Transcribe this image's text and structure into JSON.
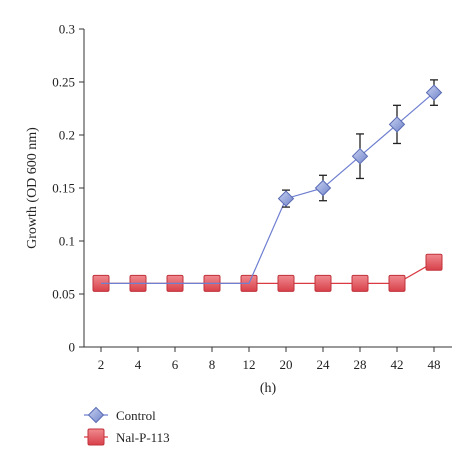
{
  "chart_data": {
    "type": "line",
    "categories": [
      "2",
      "4",
      "6",
      "8",
      "12",
      "20",
      "24",
      "28",
      "42",
      "48"
    ],
    "xlabel": "(h)",
    "ylabel": "Growth (OD 600 nm)",
    "ylim": [
      0,
      0.3
    ],
    "yticks": [
      0,
      0.05,
      0.1,
      0.15,
      0.2,
      0.25,
      0.3
    ],
    "ytick_labels": [
      "0",
      "0.05",
      "0.1",
      "0.15",
      "0.2",
      "0.25",
      "0.3"
    ],
    "grid": false,
    "legend_position": "bottom-left",
    "series": [
      {
        "name": "Control",
        "marker": "diamond",
        "color": "#7b8fd0",
        "line_color": "#6f7fd0",
        "values": [
          0.06,
          0.06,
          0.06,
          0.06,
          0.06,
          0.14,
          0.15,
          0.18,
          0.21,
          0.24
        ],
        "error": [
          null,
          null,
          null,
          null,
          null,
          0.008,
          0.012,
          0.021,
          0.018,
          0.012
        ]
      },
      {
        "name": "Nal-P-113",
        "marker": "square",
        "color": "#e0525a",
        "line_color": "#d93a44",
        "values": [
          0.06,
          0.06,
          0.06,
          0.06,
          0.06,
          0.06,
          0.06,
          0.06,
          0.06,
          0.08
        ],
        "error": [
          null,
          null,
          null,
          null,
          null,
          null,
          null,
          null,
          null,
          null
        ]
      }
    ]
  }
}
